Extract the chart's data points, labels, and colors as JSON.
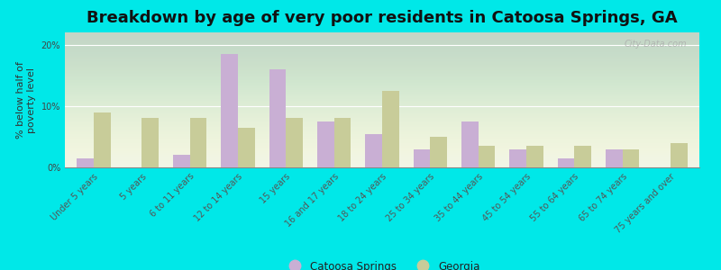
{
  "title": "Breakdown by age of very poor residents in Catoosa Springs, GA",
  "ylabel": "% below half of\npoverty level",
  "categories": [
    "Under 5 years",
    "5 years",
    "6 to 11 years",
    "12 to 14 years",
    "15 years",
    "16 and 17 years",
    "18 to 24 years",
    "25 to 34 years",
    "35 to 44 years",
    "45 to 54 years",
    "55 to 64 years",
    "65 to 74 years",
    "75 years and over"
  ],
  "catoosa_values": [
    1.5,
    0.0,
    2.0,
    18.5,
    16.0,
    7.5,
    5.5,
    3.0,
    7.5,
    3.0,
    1.5,
    3.0,
    0.0
  ],
  "georgia_values": [
    9.0,
    8.0,
    8.0,
    6.5,
    8.0,
    8.0,
    12.5,
    5.0,
    3.5,
    3.5,
    3.5,
    3.0,
    4.0
  ],
  "catoosa_color": "#c9afd4",
  "georgia_color": "#c8cc99",
  "background_outer": "#00e8e8",
  "ylim": [
    0,
    22
  ],
  "yticks": [
    0,
    10,
    20
  ],
  "ytick_labels": [
    "0%",
    "10%",
    "20%"
  ],
  "bar_width": 0.35,
  "legend_catoosa": "Catoosa Springs",
  "legend_georgia": "Georgia",
  "watermark": "City-Data.com",
  "title_fontsize": 13,
  "axis_label_fontsize": 8,
  "tick_label_fontsize": 7
}
